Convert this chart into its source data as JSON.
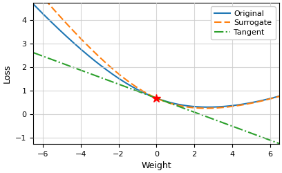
{
  "xlim": [
    -6.5,
    6.5
  ],
  "ylim": [
    -1.25,
    4.75
  ],
  "xlabel": "Weight",
  "ylabel": "Loss",
  "legend_labels": [
    "Original",
    "Surrogate",
    "Tangent"
  ],
  "legend_colors": [
    "#1f77b4",
    "#ff7f0e",
    "#2ca02c"
  ],
  "legend_styles": [
    "-",
    "--",
    "-."
  ],
  "star_x": 0.0,
  "star_y": 0.6931,
  "grid": true,
  "x_ticks": [
    -6,
    -4,
    -2,
    0,
    2,
    4,
    6
  ],
  "y_ticks": [
    -1,
    0,
    1,
    2,
    3,
    4
  ],
  "orig_a": 0.6,
  "orig_b": 0.018,
  "surr_a": 0.72,
  "surr_b": 0.018,
  "tangent_slope": -0.297,
  "tangent_intercept": 0.6931,
  "figwidth": 4.08,
  "figheight": 2.5,
  "dpi": 100
}
